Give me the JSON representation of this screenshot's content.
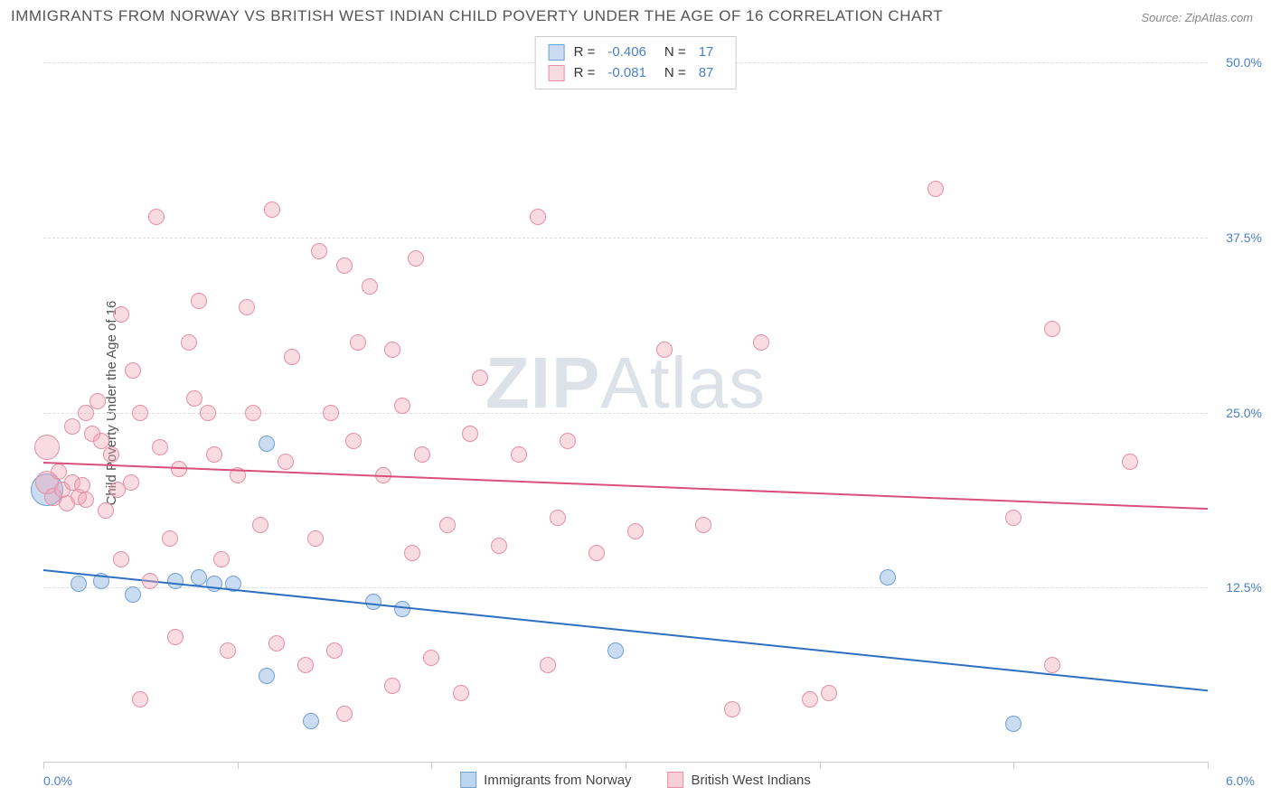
{
  "title": "IMMIGRANTS FROM NORWAY VS BRITISH WEST INDIAN CHILD POVERTY UNDER THE AGE OF 16 CORRELATION CHART",
  "source": "Source: ZipAtlas.com",
  "ylabel": "Child Poverty Under the Age of 16",
  "watermark_a": "ZIP",
  "watermark_b": "Atlas",
  "chart": {
    "type": "scatter",
    "xlim": [
      0,
      6
    ],
    "ylim": [
      0,
      52
    ],
    "x_left_label": "0.0%",
    "x_right_label": "6.0%",
    "y_ticks": [
      12.5,
      25.0,
      37.5,
      50.0
    ],
    "y_tick_labels": [
      "12.5%",
      "25.0%",
      "37.5%",
      "50.0%"
    ],
    "x_ticks": [
      0,
      1,
      2,
      3,
      4,
      5,
      6
    ],
    "grid_color": "#dddddd",
    "background_color": "#ffffff",
    "series": [
      {
        "name": "Immigrants from Norway",
        "color_fill": "rgba(137,178,225,0.45)",
        "color_stroke": "#6fa0d6",
        "line_color": "#2f6fc0",
        "r_value": "-0.406",
        "n_value": "17",
        "trend": {
          "x1": 0,
          "y1": 13.8,
          "x2": 6,
          "y2": 5.2
        },
        "points": [
          {
            "x": 0.02,
            "y": 19.5,
            "r": 18
          },
          {
            "x": 0.18,
            "y": 12.8,
            "r": 9
          },
          {
            "x": 0.3,
            "y": 13.0,
            "r": 9
          },
          {
            "x": 0.46,
            "y": 12.0,
            "r": 9
          },
          {
            "x": 0.68,
            "y": 13.0,
            "r": 9
          },
          {
            "x": 0.8,
            "y": 13.2,
            "r": 9
          },
          {
            "x": 0.88,
            "y": 12.8,
            "r": 9
          },
          {
            "x": 0.98,
            "y": 12.8,
            "r": 9
          },
          {
            "x": 1.15,
            "y": 22.8,
            "r": 9
          },
          {
            "x": 1.15,
            "y": 6.2,
            "r": 9
          },
          {
            "x": 1.38,
            "y": 3.0,
            "r": 9
          },
          {
            "x": 1.7,
            "y": 11.5,
            "r": 9
          },
          {
            "x": 1.85,
            "y": 11.0,
            "r": 9
          },
          {
            "x": 2.95,
            "y": 8.0,
            "r": 9
          },
          {
            "x": 4.35,
            "y": 13.2,
            "r": 9
          },
          {
            "x": 5.0,
            "y": 2.8,
            "r": 9
          }
        ]
      },
      {
        "name": "British West Indians",
        "color_fill": "rgba(240,160,180,0.38)",
        "color_stroke": "#e68fa5",
        "line_color": "#d9507a",
        "r_value": "-0.081",
        "n_value": "87",
        "trend": {
          "x1": 0,
          "y1": 21.5,
          "x2": 6,
          "y2": 18.2
        },
        "points": [
          {
            "x": 0.02,
            "y": 22.5,
            "r": 14
          },
          {
            "x": 0.02,
            "y": 20.0,
            "r": 13
          },
          {
            "x": 0.05,
            "y": 19.0,
            "r": 10
          },
          {
            "x": 0.08,
            "y": 20.8,
            "r": 9
          },
          {
            "x": 0.1,
            "y": 19.5,
            "r": 9
          },
          {
            "x": 0.12,
            "y": 18.5,
            "r": 9
          },
          {
            "x": 0.15,
            "y": 20.0,
            "r": 9
          },
          {
            "x": 0.15,
            "y": 24.0,
            "r": 9
          },
          {
            "x": 0.18,
            "y": 19.0,
            "r": 9
          },
          {
            "x": 0.2,
            "y": 19.8,
            "r": 9
          },
          {
            "x": 0.22,
            "y": 25.0,
            "r": 9
          },
          {
            "x": 0.22,
            "y": 18.8,
            "r": 9
          },
          {
            "x": 0.25,
            "y": 23.5,
            "r": 9
          },
          {
            "x": 0.28,
            "y": 25.8,
            "r": 9
          },
          {
            "x": 0.3,
            "y": 23.0,
            "r": 9
          },
          {
            "x": 0.32,
            "y": 18.0,
            "r": 9
          },
          {
            "x": 0.35,
            "y": 22.0,
            "r": 9
          },
          {
            "x": 0.38,
            "y": 19.5,
            "r": 9
          },
          {
            "x": 0.4,
            "y": 14.5,
            "r": 9
          },
          {
            "x": 0.4,
            "y": 32.0,
            "r": 9
          },
          {
            "x": 0.45,
            "y": 20.0,
            "r": 9
          },
          {
            "x": 0.46,
            "y": 28.0,
            "r": 9
          },
          {
            "x": 0.5,
            "y": 25.0,
            "r": 9
          },
          {
            "x": 0.5,
            "y": 4.5,
            "r": 9
          },
          {
            "x": 0.55,
            "y": 13.0,
            "r": 9
          },
          {
            "x": 0.58,
            "y": 39.0,
            "r": 9
          },
          {
            "x": 0.6,
            "y": 22.5,
            "r": 9
          },
          {
            "x": 0.65,
            "y": 16.0,
            "r": 9
          },
          {
            "x": 0.68,
            "y": 9.0,
            "r": 9
          },
          {
            "x": 0.7,
            "y": 21.0,
            "r": 9
          },
          {
            "x": 0.75,
            "y": 30.0,
            "r": 9
          },
          {
            "x": 0.78,
            "y": 26.0,
            "r": 9
          },
          {
            "x": 0.8,
            "y": 33.0,
            "r": 9
          },
          {
            "x": 0.85,
            "y": 25.0,
            "r": 9
          },
          {
            "x": 0.88,
            "y": 22.0,
            "r": 9
          },
          {
            "x": 0.92,
            "y": 14.5,
            "r": 9
          },
          {
            "x": 0.95,
            "y": 8.0,
            "r": 9
          },
          {
            "x": 1.0,
            "y": 20.5,
            "r": 9
          },
          {
            "x": 1.05,
            "y": 32.5,
            "r": 9
          },
          {
            "x": 1.08,
            "y": 25.0,
            "r": 9
          },
          {
            "x": 1.12,
            "y": 17.0,
            "r": 9
          },
          {
            "x": 1.18,
            "y": 39.5,
            "r": 9
          },
          {
            "x": 1.2,
            "y": 8.5,
            "r": 9
          },
          {
            "x": 1.25,
            "y": 21.5,
            "r": 9
          },
          {
            "x": 1.28,
            "y": 29.0,
            "r": 9
          },
          {
            "x": 1.35,
            "y": 7.0,
            "r": 9
          },
          {
            "x": 1.4,
            "y": 16.0,
            "r": 9
          },
          {
            "x": 1.42,
            "y": 36.5,
            "r": 9
          },
          {
            "x": 1.48,
            "y": 25.0,
            "r": 9
          },
          {
            "x": 1.5,
            "y": 8.0,
            "r": 9
          },
          {
            "x": 1.55,
            "y": 35.5,
            "r": 9
          },
          {
            "x": 1.55,
            "y": 3.5,
            "r": 9
          },
          {
            "x": 1.6,
            "y": 23.0,
            "r": 9
          },
          {
            "x": 1.62,
            "y": 30.0,
            "r": 9
          },
          {
            "x": 1.68,
            "y": 34.0,
            "r": 9
          },
          {
            "x": 1.75,
            "y": 20.5,
            "r": 9
          },
          {
            "x": 1.8,
            "y": 29.5,
            "r": 9
          },
          {
            "x": 1.8,
            "y": 5.5,
            "r": 9
          },
          {
            "x": 1.85,
            "y": 25.5,
            "r": 9
          },
          {
            "x": 1.9,
            "y": 15.0,
            "r": 9
          },
          {
            "x": 1.92,
            "y": 36.0,
            "r": 9
          },
          {
            "x": 1.95,
            "y": 22.0,
            "r": 9
          },
          {
            "x": 2.0,
            "y": 7.5,
            "r": 9
          },
          {
            "x": 2.08,
            "y": 17.0,
            "r": 9
          },
          {
            "x": 2.15,
            "y": 5.0,
            "r": 9
          },
          {
            "x": 2.2,
            "y": 23.5,
            "r": 9
          },
          {
            "x": 2.25,
            "y": 27.5,
            "r": 9
          },
          {
            "x": 2.35,
            "y": 15.5,
            "r": 9
          },
          {
            "x": 2.45,
            "y": 22.0,
            "r": 9
          },
          {
            "x": 2.55,
            "y": 39.0,
            "r": 9
          },
          {
            "x": 2.6,
            "y": 7.0,
            "r": 9
          },
          {
            "x": 2.65,
            "y": 17.5,
            "r": 9
          },
          {
            "x": 2.7,
            "y": 23.0,
            "r": 9
          },
          {
            "x": 2.85,
            "y": 15.0,
            "r": 9
          },
          {
            "x": 3.05,
            "y": 16.5,
            "r": 9
          },
          {
            "x": 3.2,
            "y": 29.5,
            "r": 9
          },
          {
            "x": 3.4,
            "y": 17.0,
            "r": 9
          },
          {
            "x": 3.55,
            "y": 3.8,
            "r": 9
          },
          {
            "x": 3.7,
            "y": 30.0,
            "r": 9
          },
          {
            "x": 3.95,
            "y": 4.5,
            "r": 9
          },
          {
            "x": 4.05,
            "y": 5.0,
            "r": 9
          },
          {
            "x": 4.6,
            "y": 41.0,
            "r": 9
          },
          {
            "x": 5.0,
            "y": 17.5,
            "r": 9
          },
          {
            "x": 5.2,
            "y": 31.0,
            "r": 9
          },
          {
            "x": 5.2,
            "y": 7.0,
            "r": 9
          },
          {
            "x": 5.6,
            "y": 21.5,
            "r": 9
          }
        ]
      }
    ]
  },
  "bottom_legend": [
    {
      "label": "Immigrants from Norway",
      "fill": "rgba(137,178,225,0.55)",
      "stroke": "#6fa0d6"
    },
    {
      "label": "British West Indians",
      "fill": "rgba(240,160,180,0.5)",
      "stroke": "#e68fa5"
    }
  ]
}
